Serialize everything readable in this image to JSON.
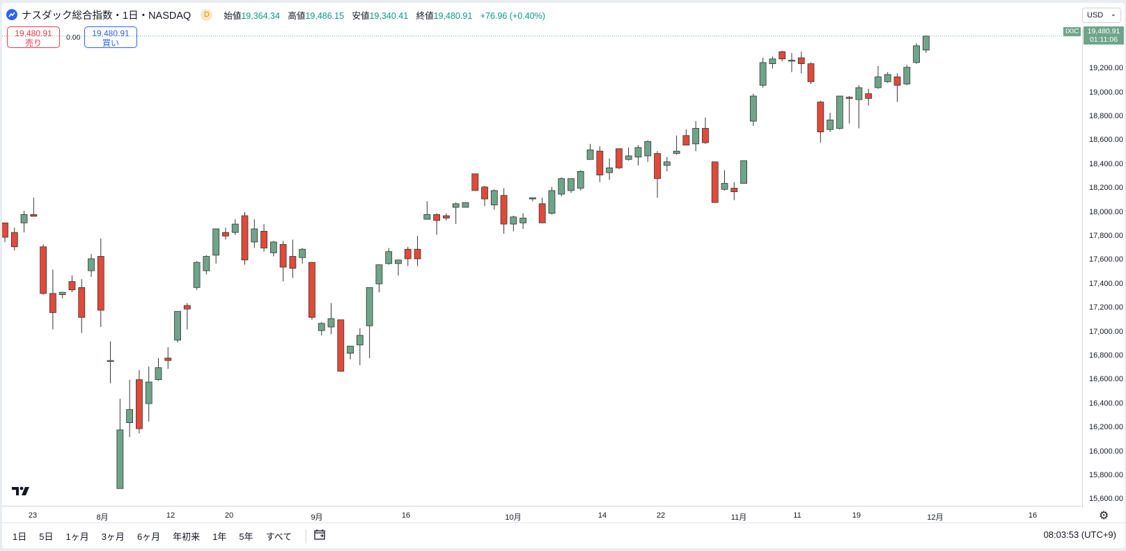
{
  "header": {
    "title": "ナスダック総合指数・1日・NASDAQ",
    "badge": "D",
    "open_label": "始値",
    "open": "19,364.34",
    "high_label": "高値",
    "high": "19,486.15",
    "low_label": "安値",
    "low": "19,340.41",
    "close_label": "終値",
    "close": "19,480.91",
    "change": "+76.96 (+0.40%)"
  },
  "trade": {
    "sell_price": "19,480.91",
    "sell_label": "売り",
    "spread": "0.00",
    "buy_price": "19,480.91",
    "buy_label": "買い"
  },
  "currency": {
    "selected": "USD"
  },
  "price_scale": {
    "ticks": [
      "19,200.00",
      "19,000.00",
      "18,800.00",
      "18,600.00",
      "18,400.00",
      "18,200.00",
      "18,000.00",
      "17,800.00",
      "17,600.00",
      "17,400.00",
      "17,200.00",
      "17,000.00",
      "16,800.00",
      "16,600.00",
      "16,400.00",
      "16,200.00",
      "16,000.00",
      "15,800.00",
      "15,600.00"
    ],
    "last_price_label": "19,480.91",
    "countdown": "01:11:06",
    "symbol_tag": "IXIC"
  },
  "time_scale": {
    "ticks": [
      "23",
      "8月",
      "12",
      "20",
      "9月",
      "16",
      "10月",
      "14",
      "22",
      "11月",
      "11",
      "19",
      "12月",
      "16"
    ]
  },
  "toolbar": {
    "timeframes": [
      "1日",
      "5日",
      "1ヶ月",
      "3ヶ月",
      "6ヶ月",
      "年初来",
      "1年",
      "5年",
      "すべて"
    ],
    "clock": "08:03:53 (UTC+9)"
  },
  "colors": {
    "up": "#6ea58a",
    "down": "#e04a3a",
    "accent": "#2962ff"
  },
  "icons": {
    "logo": "tradingview-logo-icon",
    "calendar": "calendar-range-icon",
    "settings": "gear-icon"
  },
  "chart_data": {
    "type": "candlestick",
    "ylim": [
      15550,
      19550
    ],
    "candles": [
      {
        "o": 17920,
        "h": 17920,
        "l": 17760,
        "c": 17800
      },
      {
        "o": 17840,
        "h": 17880,
        "l": 17690,
        "c": 17720
      },
      {
        "o": 17920,
        "h": 18020,
        "l": 17840,
        "c": 17990
      },
      {
        "o": 17990,
        "h": 18130,
        "l": 17980,
        "c": 17975
      },
      {
        "o": 17720,
        "h": 17740,
        "l": 17320,
        "c": 17330
      },
      {
        "o": 17330,
        "h": 17530,
        "l": 17030,
        "c": 17170
      },
      {
        "o": 17320,
        "h": 17340,
        "l": 17290,
        "c": 17340
      },
      {
        "o": 17430,
        "h": 17480,
        "l": 17340,
        "c": 17360
      },
      {
        "o": 17380,
        "h": 17450,
        "l": 17000,
        "c": 17130
      },
      {
        "o": 17520,
        "h": 17660,
        "l": 17470,
        "c": 17620
      },
      {
        "o": 17640,
        "h": 17790,
        "l": 17050,
        "c": 17190
      },
      {
        "o": 16770,
        "h": 16930,
        "l": 16580,
        "c": 16770
      },
      {
        "o": 15700,
        "h": 16450,
        "l": 15700,
        "c": 16190
      },
      {
        "o": 16250,
        "h": 16610,
        "l": 16130,
        "c": 16360
      },
      {
        "o": 16610,
        "h": 16690,
        "l": 16160,
        "c": 16200
      },
      {
        "o": 16410,
        "h": 16720,
        "l": 16260,
        "c": 16590
      },
      {
        "o": 16610,
        "h": 16790,
        "l": 16600,
        "c": 16710
      },
      {
        "o": 16790,
        "h": 16880,
        "l": 16700,
        "c": 16770
      },
      {
        "o": 16940,
        "h": 17180,
        "l": 16920,
        "c": 17180
      },
      {
        "o": 17230,
        "h": 17250,
        "l": 17030,
        "c": 17200
      },
      {
        "o": 17380,
        "h": 17600,
        "l": 17360,
        "c": 17590
      },
      {
        "o": 17520,
        "h": 17650,
        "l": 17490,
        "c": 17640
      },
      {
        "o": 17650,
        "h": 17870,
        "l": 17580,
        "c": 17870
      },
      {
        "o": 17840,
        "h": 17880,
        "l": 17780,
        "c": 17810
      },
      {
        "o": 17840,
        "h": 17950,
        "l": 17820,
        "c": 17910
      },
      {
        "o": 17980,
        "h": 18010,
        "l": 17570,
        "c": 17610
      },
      {
        "o": 17760,
        "h": 17950,
        "l": 17710,
        "c": 17870
      },
      {
        "o": 17850,
        "h": 17910,
        "l": 17680,
        "c": 17710
      },
      {
        "o": 17670,
        "h": 17770,
        "l": 17640,
        "c": 17760
      },
      {
        "o": 17740,
        "h": 17770,
        "l": 17430,
        "c": 17550
      },
      {
        "o": 17640,
        "h": 17780,
        "l": 17460,
        "c": 17540
      },
      {
        "o": 17630,
        "h": 17710,
        "l": 17580,
        "c": 17700
      },
      {
        "o": 17590,
        "h": 17590,
        "l": 17110,
        "c": 17130
      },
      {
        "o": 17020,
        "h": 17090,
        "l": 16980,
        "c": 17080
      },
      {
        "o": 17050,
        "h": 17250,
        "l": 16990,
        "c": 17120
      },
      {
        "o": 17110,
        "h": 17110,
        "l": 16680,
        "c": 16680
      },
      {
        "o": 16830,
        "h": 16890,
        "l": 16780,
        "c": 16890
      },
      {
        "o": 16900,
        "h": 17040,
        "l": 16730,
        "c": 16980
      },
      {
        "o": 17060,
        "h": 17370,
        "l": 16790,
        "c": 17380
      },
      {
        "o": 17410,
        "h": 17560,
        "l": 17340,
        "c": 17570
      },
      {
        "o": 17580,
        "h": 17710,
        "l": 17570,
        "c": 17680
      },
      {
        "o": 17580,
        "h": 17610,
        "l": 17480,
        "c": 17610
      },
      {
        "o": 17700,
        "h": 17720,
        "l": 17560,
        "c": 17620
      },
      {
        "o": 17700,
        "h": 17810,
        "l": 17560,
        "c": 17620
      },
      {
        "o": 17950,
        "h": 18100,
        "l": 17950,
        "c": 17990
      },
      {
        "o": 17990,
        "h": 18000,
        "l": 17820,
        "c": 17940
      },
      {
        "o": 17980,
        "h": 18000,
        "l": 17940,
        "c": 17960
      },
      {
        "o": 18050,
        "h": 18090,
        "l": 17910,
        "c": 18080
      },
      {
        "o": 18050,
        "h": 18090,
        "l": 18050,
        "c": 18090
      },
      {
        "o": 18330,
        "h": 18330,
        "l": 18190,
        "c": 18190
      },
      {
        "o": 18220,
        "h": 18230,
        "l": 18060,
        "c": 18120
      },
      {
        "o": 18070,
        "h": 18200,
        "l": 18030,
        "c": 18190
      },
      {
        "o": 18150,
        "h": 18210,
        "l": 17830,
        "c": 17910
      },
      {
        "o": 17910,
        "h": 17980,
        "l": 17850,
        "c": 17970
      },
      {
        "o": 17920,
        "h": 18000,
        "l": 17870,
        "c": 17960
      },
      {
        "o": 18120,
        "h": 18130,
        "l": 18100,
        "c": 18130
      },
      {
        "o": 18080,
        "h": 18130,
        "l": 17930,
        "c": 17920
      },
      {
        "o": 18000,
        "h": 18220,
        "l": 17990,
        "c": 18190
      },
      {
        "o": 18160,
        "h": 18300,
        "l": 18140,
        "c": 18290
      },
      {
        "o": 18190,
        "h": 18280,
        "l": 18170,
        "c": 18290
      },
      {
        "o": 18210,
        "h": 18360,
        "l": 18190,
        "c": 18350
      },
      {
        "o": 18450,
        "h": 18580,
        "l": 18450,
        "c": 18530
      },
      {
        "o": 18520,
        "h": 18560,
        "l": 18260,
        "c": 18320
      },
      {
        "o": 18340,
        "h": 18460,
        "l": 18280,
        "c": 18380
      },
      {
        "o": 18540,
        "h": 18540,
        "l": 18370,
        "c": 18380
      },
      {
        "o": 18450,
        "h": 18550,
        "l": 18440,
        "c": 18480
      },
      {
        "o": 18470,
        "h": 18570,
        "l": 18400,
        "c": 18550
      },
      {
        "o": 18480,
        "h": 18610,
        "l": 18430,
        "c": 18600
      },
      {
        "o": 18500,
        "h": 18520,
        "l": 18130,
        "c": 18290
      },
      {
        "o": 18400,
        "h": 18470,
        "l": 18350,
        "c": 18430
      },
      {
        "o": 18500,
        "h": 18650,
        "l": 18490,
        "c": 18520
      },
      {
        "o": 18650,
        "h": 18700,
        "l": 18570,
        "c": 18570
      },
      {
        "o": 18580,
        "h": 18770,
        "l": 18520,
        "c": 18710
      },
      {
        "o": 18710,
        "h": 18800,
        "l": 18580,
        "c": 18590
      },
      {
        "o": 18430,
        "h": 18430,
        "l": 18090,
        "c": 18090
      },
      {
        "o": 18200,
        "h": 18360,
        "l": 18190,
        "c": 18250
      },
      {
        "o": 18210,
        "h": 18260,
        "l": 18110,
        "c": 18180
      },
      {
        "o": 18250,
        "h": 18440,
        "l": 18250,
        "c": 18440
      },
      {
        "o": 18770,
        "h": 19000,
        "l": 18730,
        "c": 18980
      },
      {
        "o": 19070,
        "h": 19300,
        "l": 19050,
        "c": 19260
      },
      {
        "o": 19250,
        "h": 19310,
        "l": 19210,
        "c": 19290
      },
      {
        "o": 19350,
        "h": 19360,
        "l": 19270,
        "c": 19290
      },
      {
        "o": 19280,
        "h": 19340,
        "l": 19180,
        "c": 19280
      },
      {
        "o": 19300,
        "h": 19350,
        "l": 19170,
        "c": 19250
      },
      {
        "o": 19250,
        "h": 19260,
        "l": 19080,
        "c": 19100
      },
      {
        "o": 18930,
        "h": 18940,
        "l": 18590,
        "c": 18680
      },
      {
        "o": 18700,
        "h": 18840,
        "l": 18680,
        "c": 18780
      },
      {
        "o": 18710,
        "h": 18980,
        "l": 18700,
        "c": 18980
      },
      {
        "o": 18970,
        "h": 18980,
        "l": 18750,
        "c": 18960
      },
      {
        "o": 18950,
        "h": 19070,
        "l": 18710,
        "c": 19050
      },
      {
        "o": 19000,
        "h": 19040,
        "l": 18900,
        "c": 18960
      },
      {
        "o": 19050,
        "h": 19230,
        "l": 19040,
        "c": 19140
      },
      {
        "o": 19100,
        "h": 19180,
        "l": 19090,
        "c": 19160
      },
      {
        "o": 19140,
        "h": 19170,
        "l": 18930,
        "c": 19070
      },
      {
        "o": 19080,
        "h": 19240,
        "l": 19070,
        "c": 19220
      },
      {
        "o": 19260,
        "h": 19420,
        "l": 19250,
        "c": 19400
      },
      {
        "o": 19364.34,
        "h": 19486.15,
        "l": 19340.41,
        "c": 19480.91
      }
    ]
  }
}
